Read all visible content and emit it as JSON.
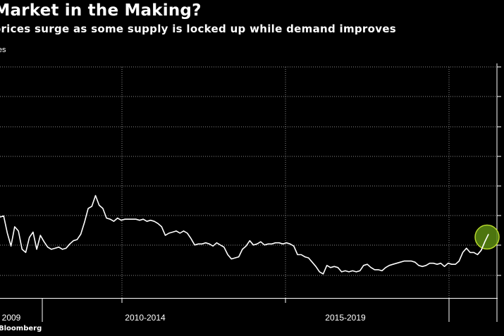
{
  "title": "ll Market in the Making?",
  "subtitle": "m prices surge as some supply is locked up while demand improves",
  "units_label": "tures",
  "source": "Bloomberg",
  "colors": {
    "background": "#000000",
    "line": "#ffffff",
    "gridline": "#8a8a8a",
    "highlight": "#5a8a12",
    "highlight_edge": "#b5d62c"
  },
  "chart_data": {
    "type": "line",
    "title": "ll Market in the Making?",
    "subtitle": "m prices surge as some supply is locked up while demand improves",
    "xlabel": "",
    "ylabel": "tures",
    "x_tick_labels": [
      "2009",
      "2010-2014",
      "2015-2019"
    ],
    "grid": true,
    "legend": "none",
    "annotation": "highlight circle on latest value",
    "series": [
      {
        "values": [
          285,
          286,
          270,
          258,
          276,
          272,
          255,
          252,
          266,
          271,
          255,
          268,
          262,
          257,
          255,
          256,
          257,
          255,
          256,
          260,
          263,
          264,
          269,
          280,
          293,
          295,
          305,
          296,
          293,
          284,
          283,
          281,
          284,
          282,
          283,
          283,
          283,
          283,
          282,
          283,
          281,
          282,
          281,
          279,
          276,
          268,
          270,
          271,
          272,
          270,
          272,
          270,
          265,
          259,
          260,
          260,
          261,
          260,
          258,
          261,
          259,
          257,
          250,
          246,
          247,
          248,
          255,
          258,
          263,
          259,
          260,
          262,
          259,
          260,
          260,
          261,
          261,
          260,
          261,
          260,
          258,
          250,
          250,
          248,
          247,
          243,
          239,
          234,
          232,
          240,
          238,
          239,
          238,
          234,
          235,
          234,
          235,
          234,
          235,
          240,
          241,
          238,
          236,
          236,
          235,
          238,
          240,
          241,
          242,
          243,
          244,
          244,
          244,
          243,
          240,
          239,
          240,
          242,
          242,
          241,
          242,
          239,
          242,
          241,
          241,
          244,
          252,
          256,
          252,
          252,
          250,
          254,
          262,
          269
        ]
      }
    ]
  }
}
